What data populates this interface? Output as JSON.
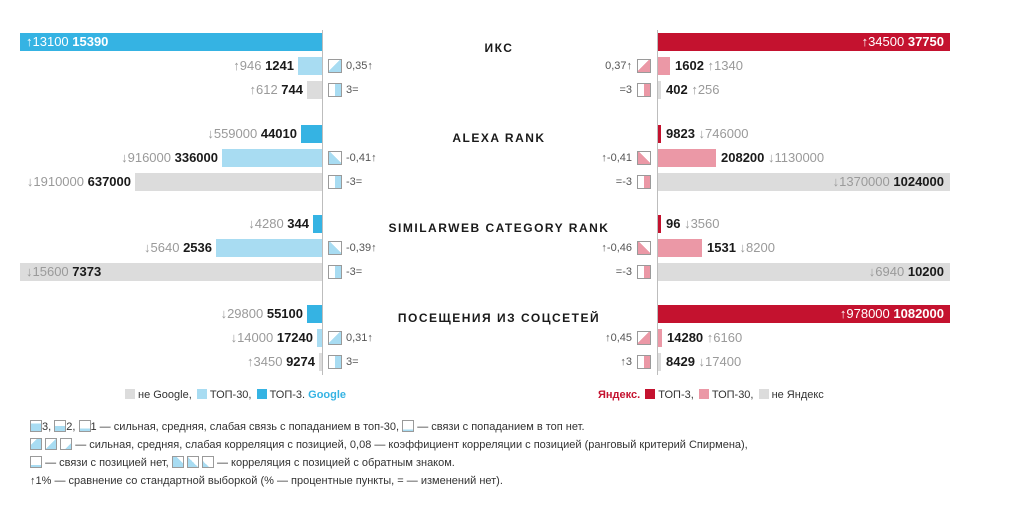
{
  "colors": {
    "google_top3": "#35b3e3",
    "google_top30": "#a8dcf2",
    "non_google": "#dcdcdc",
    "yandex_top3": "#c4122f",
    "yandex_top30": "#eb98a6",
    "non_yandex": "#dcdcdc",
    "icon_border": "#9a9a9a",
    "compare_text": "#9a9a9a"
  },
  "chart_data": {
    "type": "bar",
    "layout": "back-to-back horizontal bars, Google left, Yandex right",
    "series": [
      {
        "name": "ТОП-3",
        "side": "google"
      },
      {
        "name": "ТОП-30",
        "side": "google"
      },
      {
        "name": "не Google",
        "side": "google"
      },
      {
        "name": "ТОП-3",
        "side": "yandex"
      },
      {
        "name": "ТОП-30",
        "side": "yandex"
      },
      {
        "name": "не Яндекс",
        "side": "yandex"
      }
    ],
    "groups": [
      {
        "title": "ИКС",
        "left": [
          {
            "value": 15390,
            "cmp": "13100",
            "dir": "up",
            "fill": 1.0,
            "color": "google_top3"
          },
          {
            "value": 1241,
            "cmp": "946",
            "dir": "up",
            "fill": 0.08,
            "color": "google_top30"
          },
          {
            "value": 744,
            "cmp": "612",
            "dir": "up",
            "fill": 0.05,
            "color": "non_google"
          }
        ],
        "right": [
          {
            "value": 37750,
            "cmp": "34500",
            "dir": "up",
            "fill": 1.0,
            "color": "yandex_top3"
          },
          {
            "value": 1602,
            "cmp": "1340",
            "dir": "up",
            "fill": 0.04,
            "color": "yandex_top30"
          },
          {
            "value": 402,
            "cmp": "256",
            "dir": "up",
            "fill": 0.01,
            "color": "non_yandex"
          }
        ],
        "left_corr": [
          "",
          "0,35↑",
          "3="
        ],
        "right_corr": [
          "",
          "0,37↑",
          "=3"
        ],
        "left_icons": [
          "",
          "diag",
          "box"
        ],
        "right_icons": [
          "",
          "diag",
          "box"
        ]
      },
      {
        "title": "ALEXA RANK",
        "left": [
          {
            "value": 44010,
            "cmp": "559000",
            "dir": "down",
            "fill": 0.07,
            "color": "google_top3"
          },
          {
            "value": 336000,
            "cmp": "916000",
            "dir": "down",
            "fill": 0.33,
            "color": "google_top30"
          },
          {
            "value": 637000,
            "cmp": "1910000",
            "dir": "down",
            "fill": 0.62,
            "color": "non_google"
          }
        ],
        "right": [
          {
            "value": 9823,
            "cmp": "746000",
            "dir": "down",
            "fill": 0.01,
            "color": "yandex_top3"
          },
          {
            "value": 208200,
            "cmp": "1130000",
            "dir": "down",
            "fill": 0.2,
            "color": "yandex_top30"
          },
          {
            "value": 1024000,
            "cmp": "1370000",
            "dir": "down",
            "fill": 1.0,
            "color": "non_yandex"
          }
        ],
        "left_corr": [
          "",
          "-0,41↑",
          "-3="
        ],
        "right_corr": [
          "",
          "↑-0,41",
          "=-3"
        ],
        "left_icons": [
          "",
          "tri",
          "box"
        ],
        "right_icons": [
          "",
          "tri",
          "box"
        ]
      },
      {
        "title": "SIMILARWEB CATEGORY RANK",
        "left": [
          {
            "value": 344,
            "cmp": "4280",
            "dir": "down",
            "fill": 0.03,
            "color": "google_top3"
          },
          {
            "value": 2536,
            "cmp": "5640",
            "dir": "down",
            "fill": 0.35,
            "color": "google_top30"
          },
          {
            "value": 7373,
            "cmp": "15600",
            "dir": "down",
            "fill": 1.0,
            "color": "non_google"
          }
        ],
        "right": [
          {
            "value": 96,
            "cmp": "3560",
            "dir": "down",
            "fill": 0.01,
            "color": "yandex_top3"
          },
          {
            "value": 1531,
            "cmp": "8200",
            "dir": "down",
            "fill": 0.15,
            "color": "yandex_top30"
          },
          {
            "value": 10200,
            "cmp": "6940",
            "dir": "down",
            "fill": 1.0,
            "color": "non_yandex"
          }
        ],
        "left_corr": [
          "",
          "-0,39↑",
          "-3="
        ],
        "right_corr": [
          "",
          "↑-0,46",
          "=-3"
        ],
        "left_icons": [
          "",
          "tri",
          "box"
        ],
        "right_icons": [
          "",
          "tri",
          "box"
        ]
      },
      {
        "title": "ПОСЕЩЕНИЯ ИЗ СОЦСЕТЕЙ",
        "left": [
          {
            "value": 55100,
            "cmp": "29800",
            "dir": "down",
            "fill": 0.05,
            "color": "google_top3"
          },
          {
            "value": 17240,
            "cmp": "14000",
            "dir": "down",
            "fill": 0.016,
            "color": "google_top30"
          },
          {
            "value": 9274,
            "cmp": "3450",
            "dir": "up",
            "fill": 0.009,
            "color": "non_google"
          }
        ],
        "right": [
          {
            "value": 1082000,
            "cmp": "978000",
            "dir": "up",
            "fill": 1.0,
            "color": "yandex_top3"
          },
          {
            "value": 14280,
            "cmp": "6160",
            "dir": "up",
            "fill": 0.013,
            "color": "yandex_top30"
          },
          {
            "value": 8429,
            "cmp": "17400",
            "dir": "down",
            "fill": 0.008,
            "color": "non_yandex"
          }
        ],
        "left_corr": [
          "",
          "0,31↑",
          "3="
        ],
        "right_corr": [
          "",
          "↑0,45",
          "↑3"
        ],
        "left_icons": [
          "",
          "diag",
          "box"
        ],
        "right_icons": [
          "",
          "diag",
          "box"
        ]
      }
    ]
  },
  "legend_google": {
    "non": "не Google,",
    "top30": "ТОП-30,",
    "top3": "ТОП-3.",
    "brand": "Google"
  },
  "legend_yandex": {
    "brand": "Яндекс.",
    "top3": "ТОП-3,",
    "top30": "ТОП-30,",
    "non": "не Яндекс"
  },
  "notes": {
    "line1_a": "3,",
    "line1_b": "2,",
    "line1_c": "1 — сильная, средняя, слабая связь с попаданием в топ-30,",
    "line1_d": "— связи с попаданием в топ нет.",
    "line2": "— сильная, средняя, слабая корреляция с позицией, 0,08 — коэффициент корреляции с позицией (ранговый критерий Спирмена),",
    "line3_a": "— связи с позицией нет,",
    "line3_b": "— корреляция с позицией с обратным знаком.",
    "line4": "↑1% — сравнение со стандартной выборкой (% — процентные пункты, = — изменений нет)."
  }
}
